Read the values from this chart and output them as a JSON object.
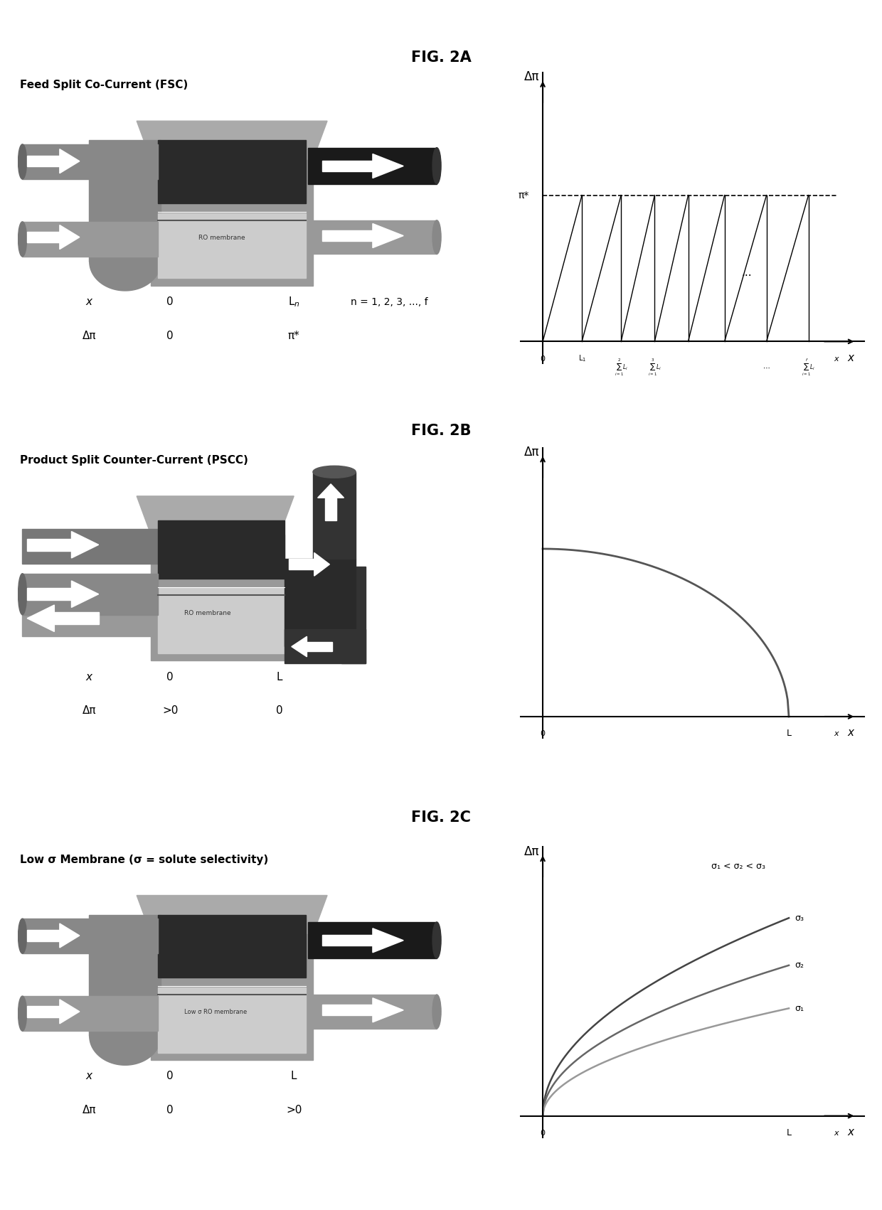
{
  "fig_title_2a": "FIG. 2A",
  "fig_title_2b": "FIG. 2B",
  "fig_title_2c": "FIG. 2C",
  "label_2a": "Feed Split Co-Current (FSC)",
  "label_2b": "Product Split Counter-Current (PSCC)",
  "label_2c": "Low σ Membrane (σ = solute selectivity)",
  "bg_color": "#ffffff",
  "text_color": "#000000",
  "c_dark": "#2a2a2a",
  "c_med_dark": "#555555",
  "c_med": "#888888",
  "c_light": "#aaaaaa",
  "c_lighter": "#cccccc",
  "c_lightest": "#e0e0e0",
  "c_box_gray": "#999999",
  "c_pipe_dark": "#444444",
  "c_pipe_med": "#777777",
  "c_pipe_light": "#bbbbbb"
}
